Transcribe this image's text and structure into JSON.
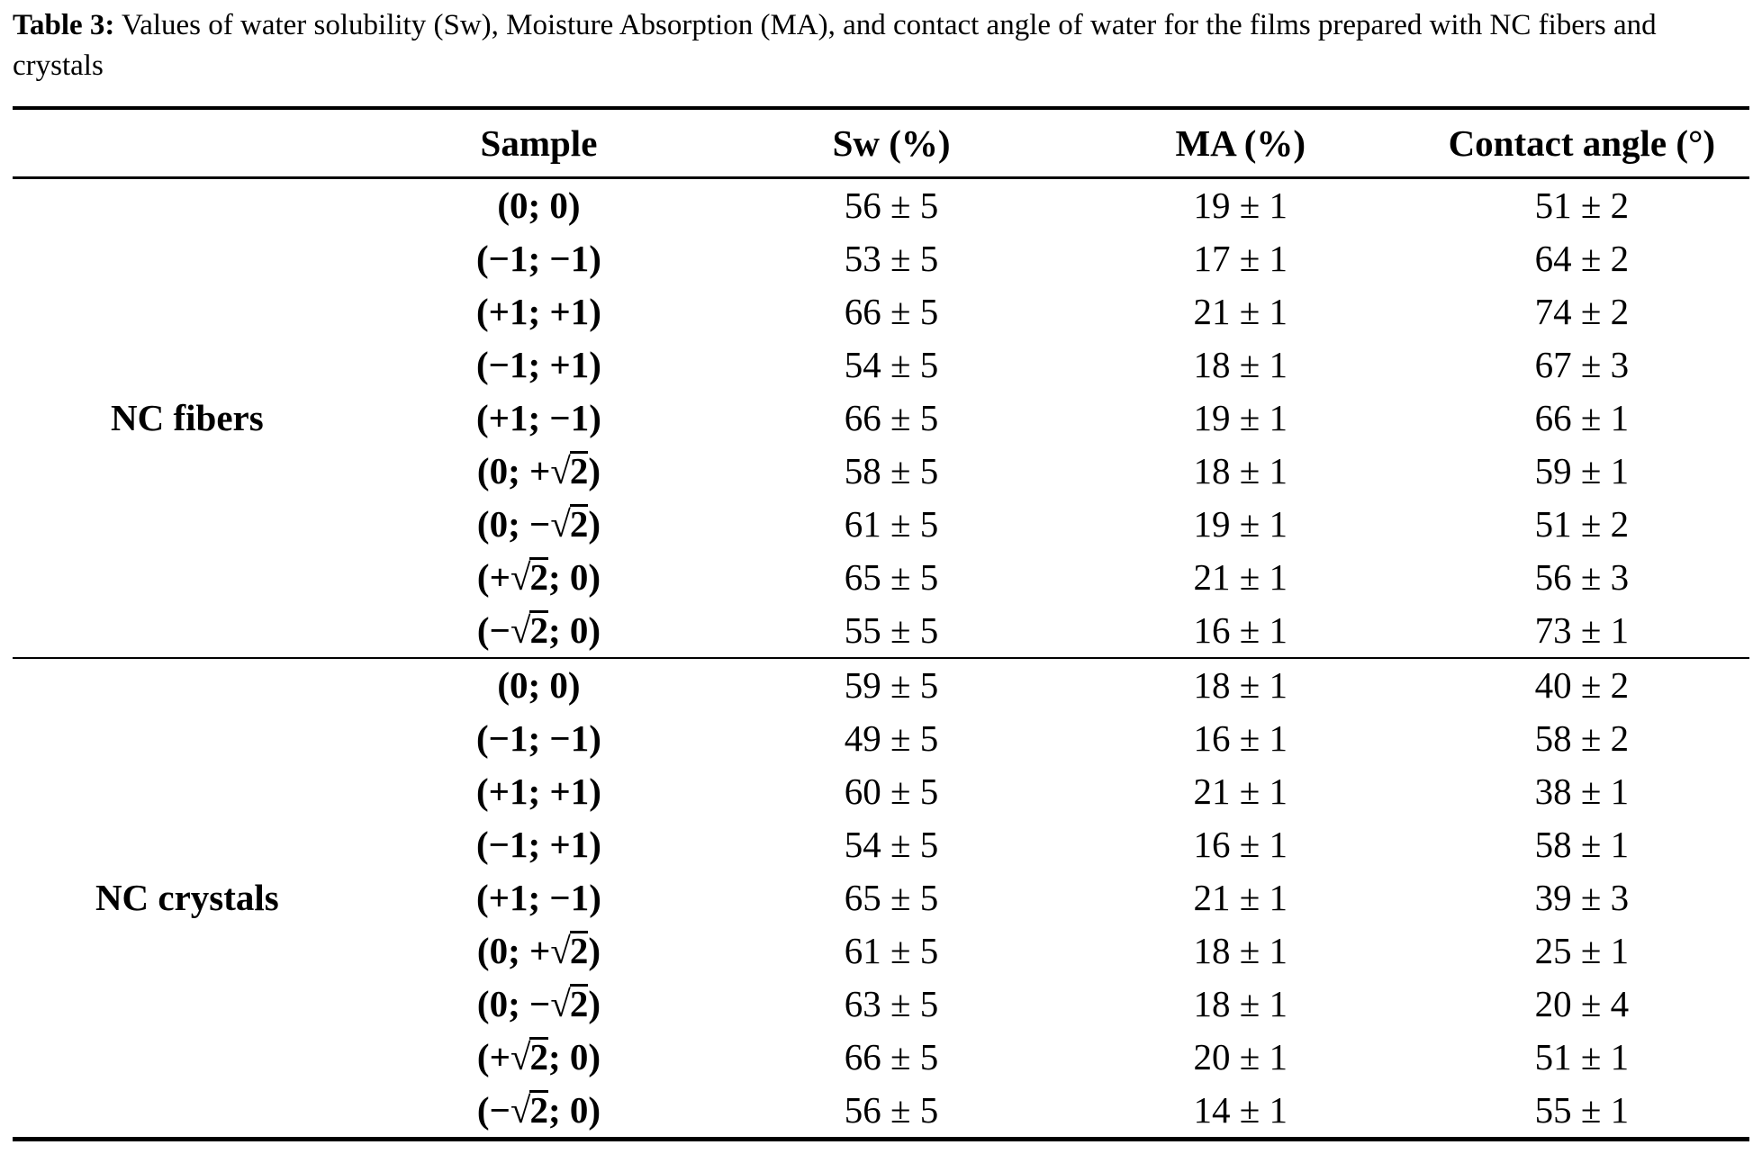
{
  "caption": {
    "label": "Table 3:",
    "text": " Values of water solubility (Sw), Moisture Absorption (MA), and contact angle of water for the films prepared with NC fibers and crystals"
  },
  "table": {
    "columns": [
      "",
      "Sample",
      "Sw (%)",
      "MA (%)",
      "Contact angle (°)"
    ],
    "groups": [
      {
        "label": "NC fibers",
        "rows": [
          {
            "sample": "(0; 0)",
            "sw": "56 ± 5",
            "ma": "19 ± 1",
            "contact_angle": "51 ± 2"
          },
          {
            "sample": "(−1; −1)",
            "sw": "53 ± 5",
            "ma": "17 ± 1",
            "contact_angle": "64 ± 2"
          },
          {
            "sample": "(+1; +1)",
            "sw": "66 ± 5",
            "ma": "21 ± 1",
            "contact_angle": "74 ± 2"
          },
          {
            "sample": "(−1; +1)",
            "sw": "54 ± 5",
            "ma": "18 ± 1",
            "contact_angle": "67 ± 3"
          },
          {
            "sample": "(+1; −1)",
            "sw": "66 ± 5",
            "ma": "19 ± 1",
            "contact_angle": "66 ± 1"
          },
          {
            "sample": "(0; +√2)",
            "sw": "58 ± 5",
            "ma": "18 ± 1",
            "contact_angle": "59 ± 1"
          },
          {
            "sample": "(0; −√2)",
            "sw": "61 ± 5",
            "ma": "19 ± 1",
            "contact_angle": "51 ± 2"
          },
          {
            "sample": "(+√2; 0)",
            "sw": "65 ± 5",
            "ma": "21 ± 1",
            "contact_angle": "56 ± 3"
          },
          {
            "sample": "(−√2; 0)",
            "sw": "55 ± 5",
            "ma": "16 ± 1",
            "contact_angle": "73 ± 1"
          }
        ]
      },
      {
        "label": "NC crystals",
        "rows": [
          {
            "sample": "(0; 0)",
            "sw": "59 ± 5",
            "ma": "18 ± 1",
            "contact_angle": "40 ± 2"
          },
          {
            "sample": "(−1; −1)",
            "sw": "49 ± 5",
            "ma": "16 ± 1",
            "contact_angle": "58 ± 2"
          },
          {
            "sample": "(+1; +1)",
            "sw": "60 ± 5",
            "ma": "21 ± 1",
            "contact_angle": "38 ± 1"
          },
          {
            "sample": "(−1; +1)",
            "sw": "54 ± 5",
            "ma": "16 ± 1",
            "contact_angle": "58 ± 1"
          },
          {
            "sample": "(+1; −1)",
            "sw": "65 ± 5",
            "ma": "21 ± 1",
            "contact_angle": "39 ± 3"
          },
          {
            "sample": "(0; +√2)",
            "sw": "61 ± 5",
            "ma": "18 ± 1",
            "contact_angle": "25 ± 1"
          },
          {
            "sample": "(0; −√2)",
            "sw": "63 ± 5",
            "ma": "18 ± 1",
            "contact_angle": "20 ± 4"
          },
          {
            "sample": "(+√2; 0)",
            "sw": "66 ± 5",
            "ma": "20 ± 1",
            "contact_angle": "51 ± 1"
          },
          {
            "sample": "(−√2; 0)",
            "sw": "56 ± 5",
            "ma": "14 ± 1",
            "contact_angle": "55 ± 1"
          }
        ]
      }
    ]
  }
}
